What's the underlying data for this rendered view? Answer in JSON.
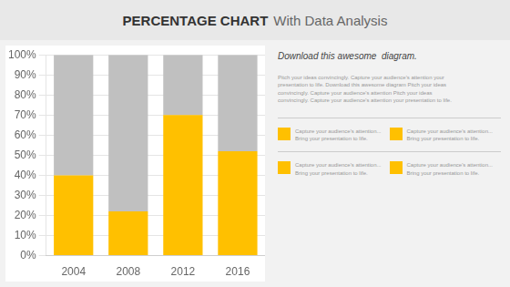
{
  "chart_data": {
    "type": "bar",
    "title": "PERCENTAGE CHART",
    "subtitle": "With Data Analysis",
    "categories": [
      "2004",
      "2008",
      "2012",
      "2016"
    ],
    "series": [
      {
        "color": "#FFC000",
        "values": [
          0.4,
          0.22,
          0.7,
          0.52
        ]
      },
      {
        "color": "#C0C0C0",
        "values": [
          0.6,
          0.78,
          0.3,
          0.48
        ]
      }
    ],
    "stacked": true,
    "ylim": [
      0,
      1.0
    ],
    "yticks": [
      {
        "value": 0,
        "label": "0%"
      },
      {
        "value": 0.1,
        "label": "10%"
      },
      {
        "value": 0.2,
        "label": "20%"
      },
      {
        "value": 0.3,
        "label": "30%"
      },
      {
        "value": 0.4,
        "label": "40%"
      },
      {
        "value": 0.5,
        "label": "50%"
      },
      {
        "value": 0.6,
        "label": "60%"
      },
      {
        "value": 0.7,
        "label": "70%"
      },
      {
        "value": 0.8,
        "label": "80%"
      },
      {
        "value": 0.9,
        "label": "90%"
      },
      {
        "value": 1.0,
        "label": "100%"
      }
    ],
    "grid": true,
    "annotations": [
      "Download this awesome  diagram.",
      "Pitch your ideas convincingly. Capture your audience's attention your\npresentation to life. Download this awesome diagram Pitch your ideas\nconvincingly. Capture your audience's attention Pitch your ideas\nconvincingly. Capture your audience's attention your presentation to life.",
      "Capture your audience's attention...\nBring your presentation to life.",
      "Capture your audience's attention...\nBring your presentation to life.",
      "Capture your audience's attention...\nBring your presentation to life.",
      "Capture your audience's attention...\nBring your presentation to life."
    ]
  }
}
